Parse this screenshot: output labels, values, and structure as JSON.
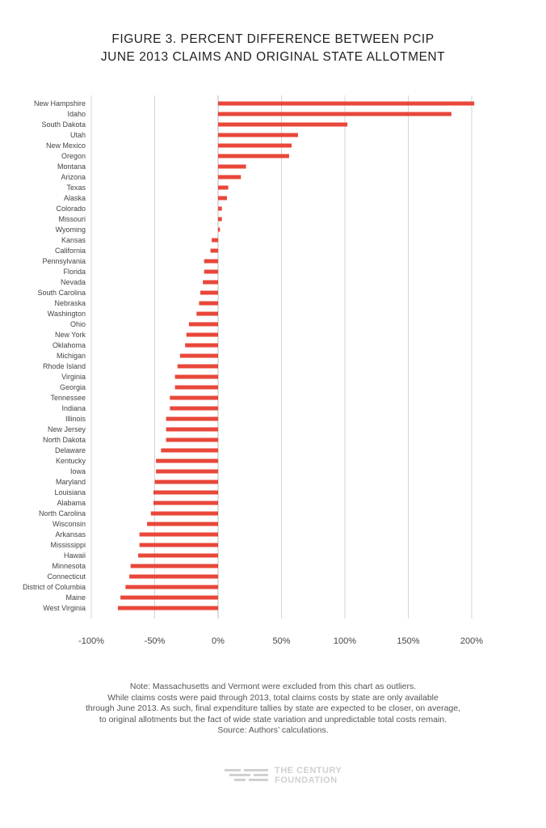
{
  "title": {
    "line1": "FIGURE 3. PERCENT DIFFERENCE BETWEEN PCIP",
    "line2": "JUNE 2013 CLAIMS AND ORIGINAL STATE ALLOTMENT"
  },
  "note": {
    "line1": "Note: Massachusetts and Vermont were excluded from this chart as outliers.",
    "line2": "While claims costs were paid through 2013, total claims costs by state are only available",
    "line3": "through June 2013. As such, final expenditure tallies by state are expected to be closer, on average,",
    "line4": "to original allotments but the fact of wide state variation and unpredictable total costs remain.",
    "line5": "Source: Authors’ calculations."
  },
  "logo": {
    "line1": "THE CENTURY",
    "line2": "FOUNDATION"
  },
  "colors": {
    "bar": "#e8473a",
    "grid": "#d4d4d4",
    "zero_line": "#bbbbbb",
    "logo": "#d0d0d0"
  },
  "chart_data": {
    "type": "bar",
    "orientation": "horizontal",
    "xlim": [
      -100,
      200
    ],
    "xticks": [
      -100,
      -50,
      0,
      50,
      100,
      150,
      200
    ],
    "xtick_labels": [
      "-100%",
      "-50%",
      "0%",
      "50%",
      "100%",
      "150%",
      "200%"
    ],
    "grid": true,
    "categories": [
      "New Hampshire",
      "Idaho",
      "South Dakota",
      "Utah",
      "New Mexico",
      "Oregon",
      "Montana",
      "Arizona",
      "Texas",
      "Alaska",
      "Colorado",
      "Missouri",
      "Wyoming",
      "Kansas",
      "California",
      "Pennsylvania",
      "Florida",
      "Nevada",
      "South Carolina",
      "Nebraska",
      "Washington",
      "Ohio",
      "New York",
      "Oklahoma",
      "Michigan",
      "Rhode Island",
      "Virginia",
      "Georgia",
      "Tennessee",
      "Indiana",
      "Illinois",
      "New Jersey",
      "North Dakota",
      "Delaware",
      "Kentucky",
      "Iowa",
      "Maryland",
      "Louisiana",
      "Alabama",
      "North Carolina",
      "Wisconsin",
      "Arkansas",
      "Mississippi",
      "Hawaii",
      "Minnesota",
      "Connecticut",
      "District of Columbia",
      "Maine",
      "West Virginia"
    ],
    "values": [
      202,
      184,
      102,
      63,
      58,
      56,
      22,
      18,
      8,
      7,
      3,
      3,
      1.5,
      -5,
      -6,
      -11,
      -11,
      -12,
      -14,
      -15,
      -17,
      -23,
      -25,
      -26,
      -30,
      -32,
      -34,
      -34,
      -38,
      -38,
      -41,
      -41,
      -41,
      -45,
      -49,
      -49,
      -50,
      -51,
      -51,
      -53,
      -56,
      -62,
      -62,
      -63,
      -69,
      -70,
      -73,
      -77,
      -79
    ]
  }
}
